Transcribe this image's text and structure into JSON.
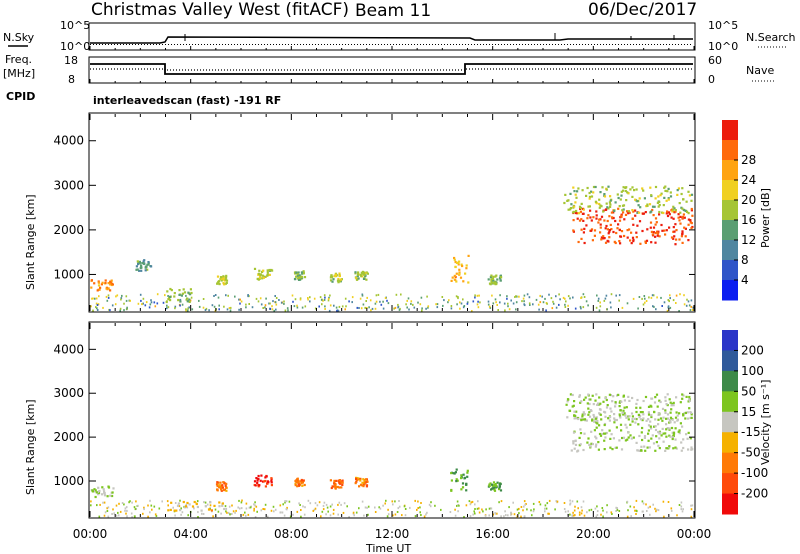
{
  "header": {
    "station": "Christmas Valley West (fitACF)",
    "beam": "Beam 11",
    "date": "06/Dec/2017"
  },
  "small_panels": {
    "nsky_label": "N.Sky",
    "nsearch_label": "N.Search",
    "noise_ticks": [
      "10^5",
      "10^0"
    ],
    "freq_label": "Freq.",
    "freq_unit": "[MHz]",
    "freq_ticks": [
      "18",
      "8"
    ],
    "nave_label": "Nave",
    "nave_ticks": [
      "60",
      "0"
    ],
    "cpid_label": "CPID",
    "cpid_value": "interleavedscan (fast) -191 RF"
  },
  "x_axis": {
    "label": "Time UT",
    "ticks": [
      "00:00",
      "04:00",
      "08:00",
      "12:00",
      "16:00",
      "20:00",
      "00:00"
    ]
  },
  "chart_data": [
    {
      "type": "heatmap",
      "panel": "power",
      "ylabel": "Slant Range [km]",
      "yticks": [
        "1000",
        "2000",
        "3000",
        "4000"
      ],
      "ylim": [
        180,
        4600
      ],
      "xlim_hours": [
        0,
        24
      ],
      "colorbar_label": "Power [dB]",
      "colorbar_ticks": [
        "4",
        "8",
        "12",
        "16",
        "20",
        "24",
        "28"
      ],
      "colorbar_colors": [
        "#0b1ef0",
        "#2f55c8",
        "#4f86a0",
        "#5a9e72",
        "#a5c534",
        "#f0d021",
        "#ffa411",
        "#ff6a0b",
        "#ec1c0c"
      ],
      "regions": [
        {
          "t": [
            0.0,
            0.9
          ],
          "r": [
            650,
            900
          ],
          "level": 0.78
        },
        {
          "t": [
            1.8,
            2.4
          ],
          "r": [
            1100,
            1350
          ],
          "level": 0.35
        },
        {
          "t": [
            3.0,
            4.0
          ],
          "r": [
            400,
            700
          ],
          "level": 0.45
        },
        {
          "t": [
            5.0,
            5.4
          ],
          "r": [
            800,
            1000
          ],
          "level": 0.55
        },
        {
          "t": [
            6.5,
            7.2
          ],
          "r": [
            900,
            1150
          ],
          "level": 0.52
        },
        {
          "t": [
            8.1,
            8.5
          ],
          "r": [
            900,
            1100
          ],
          "level": 0.45
        },
        {
          "t": [
            9.5,
            10.0
          ],
          "r": [
            850,
            1050
          ],
          "level": 0.5
        },
        {
          "t": [
            10.5,
            11.0
          ],
          "r": [
            900,
            1100
          ],
          "level": 0.5
        },
        {
          "t": [
            14.3,
            15.0
          ],
          "r": [
            800,
            1500
          ],
          "level": 0.72
        },
        {
          "t": [
            15.8,
            16.3
          ],
          "r": [
            800,
            1000
          ],
          "level": 0.45
        },
        {
          "t": [
            19.1,
            23.9
          ],
          "r": [
            1700,
            2500
          ],
          "level": 0.95
        },
        {
          "t": [
            18.8,
            23.9
          ],
          "r": [
            2400,
            3000
          ],
          "level": 0.5
        }
      ]
    },
    {
      "type": "heatmap",
      "panel": "velocity",
      "ylabel": "Slant Range [km]",
      "yticks": [
        "1000",
        "2000",
        "3000",
        "4000"
      ],
      "ylim": [
        180,
        4600
      ],
      "xlim_hours": [
        0,
        24
      ],
      "colorbar_label": "Velocity [m s⁻¹]",
      "colorbar_ticks": [
        "200",
        "100",
        "50",
        "15",
        "-15",
        "-50",
        "-100",
        "-200"
      ],
      "colorbar_colors": [
        "#2a35c8",
        "#2f5a9a",
        "#3d8a48",
        "#7dc520",
        "#c6c6c0",
        "#f5b100",
        "#ff7a06",
        "#ff4a0a",
        "#f00a0a"
      ],
      "regions": [
        {
          "t": [
            0.0,
            0.9
          ],
          "r": [
            650,
            900
          ],
          "level": 0.44
        },
        {
          "t": [
            3.0,
            5.4
          ],
          "r": [
            350,
            550
          ],
          "level": 0.6
        },
        {
          "t": [
            5.0,
            5.4
          ],
          "r": [
            800,
            1000
          ],
          "level": 0.75
        },
        {
          "t": [
            6.5,
            7.2
          ],
          "r": [
            900,
            1150
          ],
          "level": 0.95
        },
        {
          "t": [
            8.1,
            8.5
          ],
          "r": [
            900,
            1100
          ],
          "level": 0.75
        },
        {
          "t": [
            9.5,
            10.0
          ],
          "r": [
            850,
            1050
          ],
          "level": 0.8
        },
        {
          "t": [
            10.5,
            11.0
          ],
          "r": [
            900,
            1100
          ],
          "level": 0.75
        },
        {
          "t": [
            14.3,
            15.0
          ],
          "r": [
            800,
            1300
          ],
          "level": 0.3
        },
        {
          "t": [
            15.8,
            16.3
          ],
          "r": [
            800,
            1000
          ],
          "level": 0.3
        },
        {
          "t": [
            19.1,
            23.9
          ],
          "r": [
            1700,
            2600
          ],
          "level": 0.44
        },
        {
          "t": [
            18.8,
            23.9
          ],
          "r": [
            2400,
            3000
          ],
          "level": 0.44
        }
      ]
    }
  ]
}
